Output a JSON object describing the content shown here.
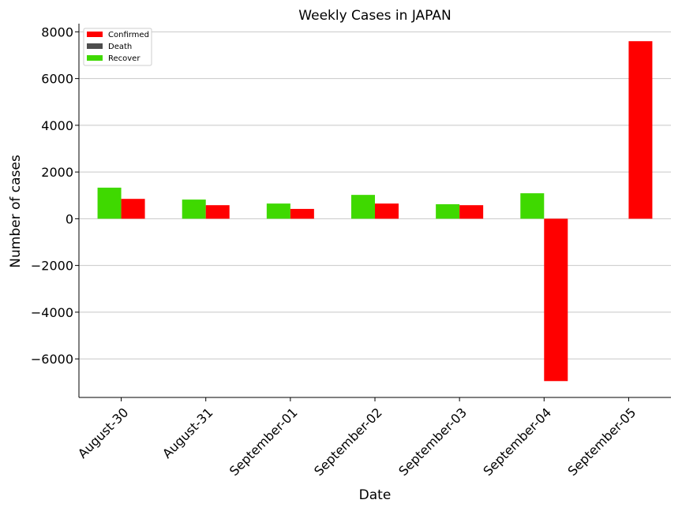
{
  "chart_data": {
    "type": "bar",
    "title": "Weekly Cases in JAPAN",
    "xlabel": "Date",
    "ylabel": "Number of cases",
    "categories": [
      "August-30",
      "August-31",
      "September-01",
      "September-02",
      "September-03",
      "September-04",
      "September-05"
    ],
    "series": [
      {
        "name": "Confirmed",
        "color": "#ff0000",
        "values": [
          850,
          580,
          420,
          650,
          580,
          -6950,
          7600
        ]
      },
      {
        "name": "Death",
        "color": "#4d4d4d",
        "values": [
          5,
          5,
          5,
          5,
          5,
          5,
          0
        ]
      },
      {
        "name": "Recover",
        "color": "#3fd900",
        "values": [
          1330,
          820,
          650,
          1020,
          620,
          1090,
          0
        ]
      }
    ],
    "ylim": [
      -7650,
      8350
    ],
    "yticks": [
      -6000,
      -4000,
      -2000,
      0,
      2000,
      4000,
      6000,
      8000
    ],
    "ytick_labels": [
      "−6000",
      "−4000",
      "−2000",
      "0",
      "2000",
      "4000",
      "6000",
      "8000"
    ],
    "grid": "horizontal",
    "legend_position": "top-left"
  }
}
